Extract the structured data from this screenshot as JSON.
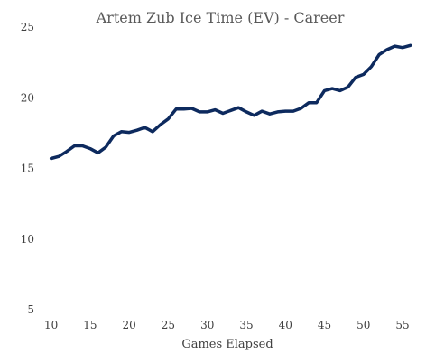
{
  "chart_data": {
    "type": "line",
    "title": "Artem Zub Ice Time (EV) - Career",
    "xlabel": "Games Elapsed",
    "ylabel": "",
    "xlim": [
      9,
      56.5
    ],
    "ylim": [
      5,
      25
    ],
    "x_ticks": [
      10,
      15,
      20,
      25,
      30,
      35,
      40,
      45,
      50,
      55
    ],
    "y_ticks": [
      5,
      10,
      15,
      20,
      25
    ],
    "grid": false,
    "line_color": "#0d2a5e",
    "series": [
      {
        "x": [
          10,
          11,
          12,
          13,
          14,
          15,
          16,
          17,
          18,
          19,
          20,
          21,
          22,
          23,
          24,
          25,
          26,
          27,
          28,
          29,
          30,
          31,
          32,
          33,
          34,
          35,
          36,
          37,
          38,
          39,
          40,
          41,
          42,
          43,
          44,
          45,
          46,
          47,
          48,
          49,
          50,
          51,
          52,
          53,
          54,
          55,
          56
        ],
        "values": [
          15.7,
          15.85,
          16.2,
          16.6,
          16.6,
          16.4,
          16.1,
          16.5,
          17.3,
          17.6,
          17.55,
          17.7,
          17.9,
          17.6,
          18.1,
          18.5,
          19.2,
          19.2,
          19.25,
          19.0,
          19.0,
          19.15,
          18.9,
          19.1,
          19.3,
          19.0,
          18.75,
          19.05,
          18.85,
          19.0,
          19.05,
          19.05,
          19.25,
          19.65,
          19.65,
          20.5,
          20.65,
          20.5,
          20.75,
          21.45,
          21.65,
          22.2,
          23.05,
          23.4,
          23.65,
          23.55,
          23.7
        ]
      }
    ]
  }
}
